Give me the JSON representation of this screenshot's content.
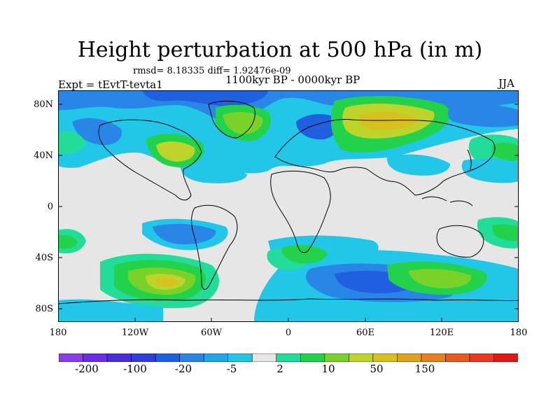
{
  "title": "Height perturbation at 500 hPa (in m)",
  "stats": "rmsd= 8.18335 diff= 1.92476e-09",
  "period": "1100kyr BP - 0000kyr BP",
  "experiment": "Expt = tEvtT-tevta1",
  "season": "JJA",
  "lat_labels": [
    "80N",
    "40N",
    "0",
    "40S",
    "80S"
  ],
  "lon_labels": [
    "180",
    "120W",
    "60W",
    "0",
    "60E",
    "120E",
    "180"
  ],
  "colorbar": {
    "labels": [
      "-200",
      "-100",
      "-20",
      "-5",
      "2",
      "10",
      "50",
      "150"
    ],
    "colors": [
      "#8a3ee8",
      "#6a2fe0",
      "#4a2fd8",
      "#2f3fd8",
      "#2060e0",
      "#2a86e6",
      "#22a6ea",
      "#22c6e6",
      "#e6e6e6",
      "#22dc9a",
      "#22d24a",
      "#78d22a",
      "#bed42a",
      "#d8c020",
      "#e0a020",
      "#e88020",
      "#e85a20",
      "#e83a20",
      "#e01818"
    ]
  },
  "fill_colors": {
    "neutral": "#e6e6e6",
    "low1": "#22c6e6",
    "low2": "#2a86e6",
    "low3": "#2060e0",
    "high1": "#22dc9a",
    "high2": "#22d24a",
    "high3": "#78d22a",
    "high4": "#bed42a",
    "high5": "#d8c020",
    "coast": "#000000"
  }
}
